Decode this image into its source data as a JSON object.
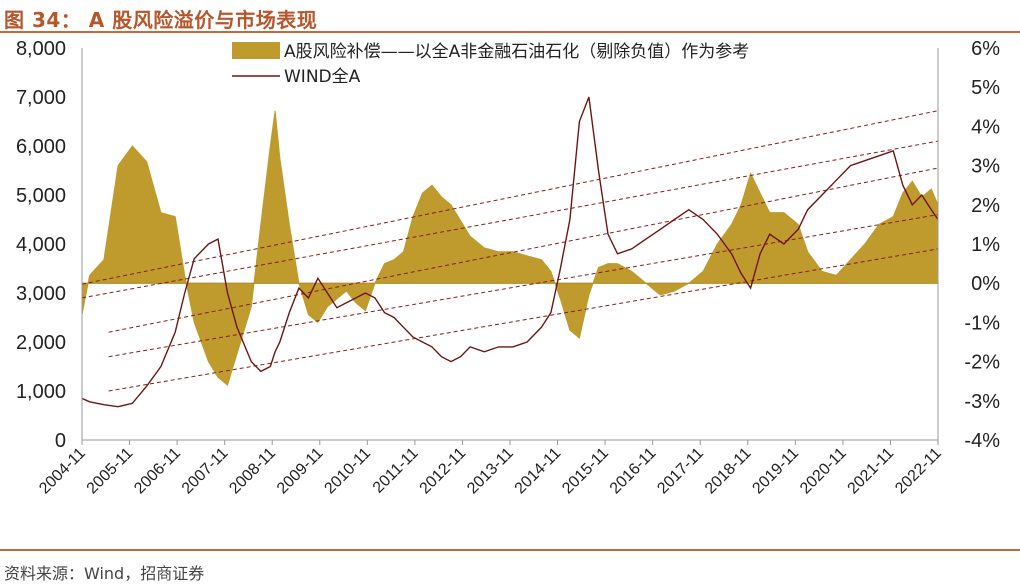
{
  "header": {
    "title": "图 34： A 股风险溢价与市场表现"
  },
  "footer": {
    "source": "资料来源：Wind，招商证券"
  },
  "colors": {
    "premium_fill": "#bf9a2c",
    "index_line": "#6e1515",
    "channel": "#8a1c1c",
    "accent": "#c56a3f"
  },
  "chart_data": {
    "type": "area",
    "left_axis": {
      "min": 0,
      "max": 8000,
      "ticks": [
        "0",
        "1,000",
        "2,000",
        "3,000",
        "4,000",
        "5,000",
        "6,000",
        "7,000",
        "8,000"
      ]
    },
    "right_axis": {
      "min": -4,
      "max": 6,
      "ticks": [
        "-4%",
        "-3%",
        "-2%",
        "-1%",
        "0%",
        "1%",
        "2%",
        "3%",
        "4%",
        "5%",
        "6%"
      ]
    },
    "x_ticks": [
      "2004-11",
      "2005-11",
      "2006-11",
      "2007-11",
      "2008-11",
      "2009-11",
      "2010-11",
      "2011-11",
      "2012-11",
      "2013-11",
      "2014-11",
      "2015-11",
      "2016-11",
      "2017-11",
      "2018-11",
      "2019-11",
      "2020-11",
      "2021-11",
      "2022-11"
    ],
    "grid": false,
    "legend_placement": "top",
    "series": [
      {
        "name": "A股风险补偿——以全A非金融石油石化（剔除负值）作为参考",
        "axis": "right",
        "style": "area",
        "x": [
          2004.84,
          2005.0,
          2005.3,
          2005.6,
          2005.9,
          2006.2,
          2006.5,
          2006.8,
          2007.0,
          2007.2,
          2007.5,
          2007.7,
          2007.9,
          2008.1,
          2008.4,
          2008.6,
          2008.8,
          2008.9,
          2009.0,
          2009.2,
          2009.4,
          2009.6,
          2009.8,
          2010.0,
          2010.2,
          2010.4,
          2010.6,
          2010.8,
          2011.0,
          2011.2,
          2011.4,
          2011.6,
          2011.8,
          2012.0,
          2012.2,
          2012.4,
          2012.6,
          2012.8,
          2013.0,
          2013.3,
          2013.6,
          2013.9,
          2014.2,
          2014.5,
          2014.7,
          2014.9,
          2015.1,
          2015.3,
          2015.5,
          2015.7,
          2015.9,
          2016.1,
          2016.4,
          2016.7,
          2017.0,
          2017.3,
          2017.6,
          2017.9,
          2018.2,
          2018.5,
          2018.7,
          2018.9,
          2019.1,
          2019.3,
          2019.6,
          2019.9,
          2020.1,
          2020.4,
          2020.7,
          2021.0,
          2021.3,
          2021.6,
          2021.9,
          2022.1,
          2022.3,
          2022.5,
          2022.7,
          2022.84
        ],
        "values": [
          -0.8,
          0.2,
          0.6,
          3.0,
          3.5,
          3.1,
          1.8,
          1.7,
          0.2,
          -1.0,
          -2.0,
          -2.4,
          -2.6,
          -1.8,
          -0.6,
          1.5,
          3.5,
          4.4,
          3.2,
          1.5,
          0.0,
          -0.8,
          -1.0,
          -0.6,
          -0.4,
          -0.2,
          -0.5,
          -0.7,
          0.0,
          0.5,
          0.6,
          0.8,
          1.7,
          2.3,
          2.5,
          2.2,
          2.0,
          1.6,
          1.2,
          0.9,
          0.8,
          0.8,
          0.7,
          0.6,
          0.3,
          -0.4,
          -1.2,
          -1.4,
          -0.3,
          0.4,
          0.5,
          0.5,
          0.3,
          0.0,
          -0.3,
          -0.2,
          0.0,
          0.3,
          1.0,
          1.5,
          2.0,
          2.8,
          2.3,
          1.8,
          1.8,
          1.5,
          0.8,
          0.3,
          0.2,
          0.6,
          1.0,
          1.5,
          1.7,
          2.3,
          2.6,
          2.2,
          2.4,
          2.0
        ]
      },
      {
        "name": "WIND全A",
        "axis": "left",
        "style": "line",
        "x": [
          2004.84,
          2005.0,
          2005.3,
          2005.6,
          2005.9,
          2006.2,
          2006.5,
          2006.8,
          2007.0,
          2007.2,
          2007.5,
          2007.7,
          2007.9,
          2008.1,
          2008.4,
          2008.6,
          2008.8,
          2008.9,
          2009.0,
          2009.2,
          2009.4,
          2009.6,
          2009.8,
          2010.0,
          2010.2,
          2010.4,
          2010.6,
          2010.8,
          2011.0,
          2011.2,
          2011.4,
          2011.6,
          2011.8,
          2012.0,
          2012.2,
          2012.4,
          2012.6,
          2012.8,
          2013.0,
          2013.3,
          2013.6,
          2013.9,
          2014.2,
          2014.5,
          2014.7,
          2014.9,
          2015.1,
          2015.3,
          2015.5,
          2015.7,
          2015.9,
          2016.1,
          2016.4,
          2016.7,
          2017.0,
          2017.3,
          2017.6,
          2017.9,
          2018.2,
          2018.5,
          2018.7,
          2018.9,
          2019.1,
          2019.3,
          2019.6,
          2019.9,
          2020.1,
          2020.4,
          2020.7,
          2021.0,
          2021.3,
          2021.6,
          2021.9,
          2022.1,
          2022.3,
          2022.5,
          2022.7,
          2022.84
        ],
        "values": [
          850,
          780,
          720,
          680,
          750,
          1100,
          1500,
          2200,
          3000,
          3700,
          4000,
          4100,
          3000,
          2300,
          1600,
          1400,
          1500,
          1800,
          2000,
          2600,
          3100,
          2900,
          3300,
          3000,
          2700,
          2800,
          2900,
          3000,
          2900,
          2600,
          2500,
          2300,
          2100,
          2000,
          1900,
          1700,
          1600,
          1700,
          1900,
          1800,
          1900,
          1900,
          2000,
          2300,
          2600,
          3500,
          4500,
          6500,
          7000,
          5500,
          4200,
          3800,
          3900,
          4100,
          4300,
          4500,
          4700,
          4500,
          4200,
          3800,
          3400,
          3100,
          3800,
          4200,
          4000,
          4300,
          4700,
          5000,
          5300,
          5600,
          5700,
          5800,
          5900,
          5200,
          4800,
          5000,
          4700,
          4500
        ]
      }
    ],
    "channel_lines": {
      "description": "dashed log-trend channel (left axis values)",
      "lines": [
        {
          "x": [
            2004.84,
            2022.84
          ],
          "values": [
            3180,
            6720
          ]
        },
        {
          "x": [
            2004.84,
            2022.84
          ],
          "values": [
            2900,
            6100
          ]
        },
        {
          "x": [
            2005.4,
            2022.84
          ],
          "values": [
            2200,
            5550
          ]
        },
        {
          "x": [
            2005.4,
            2022.84
          ],
          "values": [
            1700,
            4600
          ]
        },
        {
          "x": [
            2005.4,
            2022.84
          ],
          "values": [
            1000,
            3900
          ]
        }
      ]
    }
  }
}
